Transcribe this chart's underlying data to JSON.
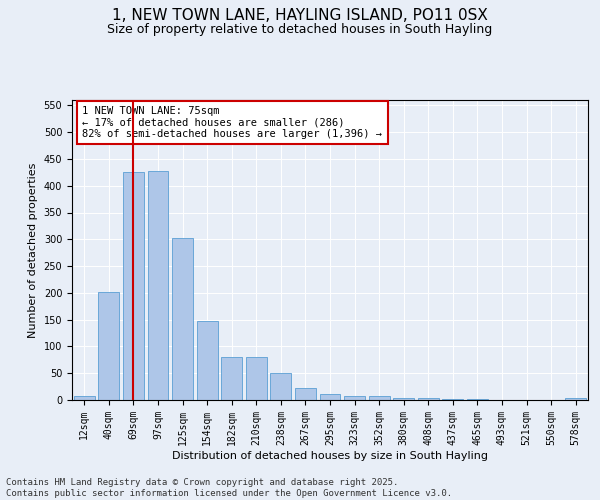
{
  "title": "1, NEW TOWN LANE, HAYLING ISLAND, PO11 0SX",
  "subtitle": "Size of property relative to detached houses in South Hayling",
  "xlabel": "Distribution of detached houses by size in South Hayling",
  "ylabel": "Number of detached properties",
  "categories": [
    "12sqm",
    "40sqm",
    "69sqm",
    "97sqm",
    "125sqm",
    "154sqm",
    "182sqm",
    "210sqm",
    "238sqm",
    "267sqm",
    "295sqm",
    "323sqm",
    "352sqm",
    "380sqm",
    "408sqm",
    "437sqm",
    "465sqm",
    "493sqm",
    "521sqm",
    "550sqm",
    "578sqm"
  ],
  "values": [
    8,
    202,
    426,
    427,
    302,
    147,
    80,
    80,
    50,
    22,
    11,
    8,
    7,
    3,
    3,
    2,
    1,
    0,
    0,
    0,
    3
  ],
  "bar_color": "#aec6e8",
  "bar_edge_color": "#5a9fd4",
  "vline_x": 2.0,
  "vline_color": "#cc0000",
  "annotation_text": "1 NEW TOWN LANE: 75sqm\n← 17% of detached houses are smaller (286)\n82% of semi-detached houses are larger (1,396) →",
  "annotation_box_color": "#ffffff",
  "annotation_box_edge_color": "#cc0000",
  "ylim": [
    0,
    560
  ],
  "yticks": [
    0,
    50,
    100,
    150,
    200,
    250,
    300,
    350,
    400,
    450,
    500,
    550
  ],
  "background_color": "#e8eef7",
  "footer_line1": "Contains HM Land Registry data © Crown copyright and database right 2025.",
  "footer_line2": "Contains public sector information licensed under the Open Government Licence v3.0.",
  "title_fontsize": 11,
  "subtitle_fontsize": 9,
  "axis_label_fontsize": 8,
  "tick_fontsize": 7,
  "annotation_fontsize": 7.5,
  "footer_fontsize": 6.5
}
